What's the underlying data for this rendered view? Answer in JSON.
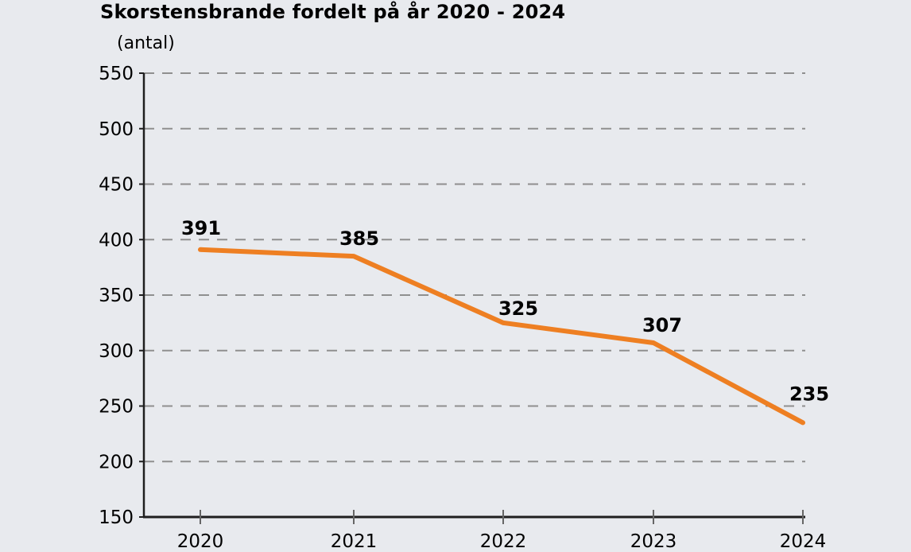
{
  "header": {
    "title": "Skorstensbrande fordelt på år 2020 - 2024",
    "unit_label": "(antal)"
  },
  "chart_data": {
    "type": "line",
    "title": "Skorstensbrande fordelt på år 2020 - 2024",
    "ylabel": "(antal)",
    "xlabel": "",
    "categories": [
      "2020",
      "2021",
      "2022",
      "2023",
      "2024"
    ],
    "series": [
      {
        "name": "Skorstensbrande",
        "values": [
          391,
          385,
          325,
          307,
          235
        ],
        "data_labels": [
          "391",
          "385",
          "325",
          "307",
          "235"
        ]
      }
    ],
    "ylim": [
      150,
      550
    ],
    "yticks": [
      150,
      200,
      250,
      300,
      350,
      400,
      450,
      500,
      550
    ],
    "grid": "horizontal-dashed",
    "legend_position": "none",
    "colors": {
      "line": "#ee7f22",
      "gridline": "#8f8f8f",
      "axis": "#1f1f1f",
      "x_tick": "#666666",
      "text": "#000000",
      "background": "#e8eaee"
    }
  }
}
